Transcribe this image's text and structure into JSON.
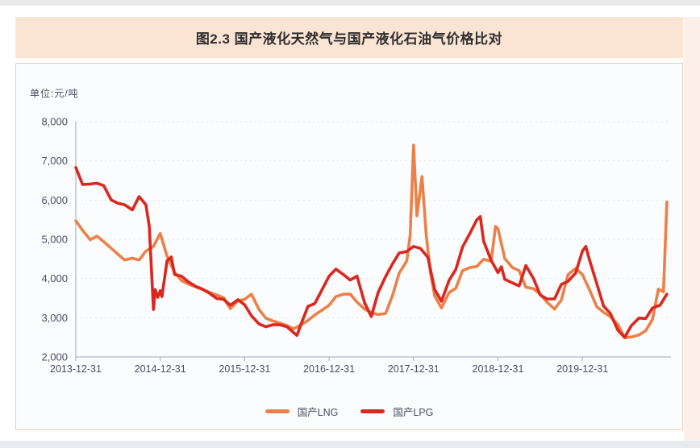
{
  "banner": {
    "title": "图2.3 国产液化天然气与国产液化石油气价格比对"
  },
  "chart": {
    "unit_label": "单位:元/吨",
    "y_tick_labels": [
      "8,000",
      "7,000",
      "6,000",
      "5,000",
      "4,000",
      "3,000",
      "2,000"
    ],
    "x_tick_labels": [
      "2013-12-31",
      "2014-12-31",
      "2015-12-31",
      "2016-12-31",
      "2017-12-31",
      "2018-12-31",
      "2019-12-31"
    ],
    "colors": {
      "lng": "#EC8148",
      "lpg": "#DB271E",
      "axis": "#9FA6B4",
      "grid": "#E2E6EC",
      "text": "#4A4E60"
    },
    "legend": [
      {
        "label": "国产LNG",
        "color": "#EC8148"
      },
      {
        "label": "国产LPG",
        "color": "#DB271E"
      }
    ]
  },
  "chart_data": {
    "type": "line",
    "title": "图2.3 国产液化天然气与国产液化石油气价格比对",
    "ylabel": "单位:元/吨",
    "ylim": [
      2000,
      8000
    ],
    "y_ticks": [
      2000,
      3000,
      4000,
      5000,
      6000,
      7000,
      8000
    ],
    "x_range_years": [
      2014.0,
      2021.05
    ],
    "x_ticks_years": [
      2014,
      2015,
      2016,
      2017,
      2018,
      2019,
      2020
    ],
    "x_tick_labels": [
      "2013-12-31",
      "2014-12-31",
      "2015-12-31",
      "2016-12-31",
      "2017-12-31",
      "2018-12-31",
      "2019-12-31"
    ],
    "grid": "horizontal-dotted",
    "legend_position": "bottom-center",
    "series": [
      {
        "name": "国产LNG",
        "color": "#EC8148",
        "points": [
          [
            2014.0,
            5470
          ],
          [
            2014.08,
            5230
          ],
          [
            2014.17,
            4990
          ],
          [
            2014.25,
            5080
          ],
          [
            2014.33,
            4940
          ],
          [
            2014.42,
            4770
          ],
          [
            2014.5,
            4620
          ],
          [
            2014.58,
            4470
          ],
          [
            2014.67,
            4520
          ],
          [
            2014.75,
            4470
          ],
          [
            2014.83,
            4700
          ],
          [
            2014.92,
            4820
          ],
          [
            2015.0,
            5150
          ],
          [
            2015.08,
            4570
          ],
          [
            2015.17,
            4160
          ],
          [
            2015.25,
            3950
          ],
          [
            2015.33,
            3860
          ],
          [
            2015.42,
            3790
          ],
          [
            2015.5,
            3720
          ],
          [
            2015.58,
            3650
          ],
          [
            2015.67,
            3580
          ],
          [
            2015.75,
            3510
          ],
          [
            2015.83,
            3230
          ],
          [
            2015.92,
            3430
          ],
          [
            2016.0,
            3470
          ],
          [
            2016.08,
            3600
          ],
          [
            2016.17,
            3210
          ],
          [
            2016.25,
            2990
          ],
          [
            2016.33,
            2920
          ],
          [
            2016.42,
            2860
          ],
          [
            2016.5,
            2800
          ],
          [
            2016.58,
            2720
          ],
          [
            2016.67,
            2820
          ],
          [
            2016.75,
            2930
          ],
          [
            2016.83,
            3070
          ],
          [
            2016.92,
            3200
          ],
          [
            2017.0,
            3320
          ],
          [
            2017.08,
            3540
          ],
          [
            2017.17,
            3600
          ],
          [
            2017.25,
            3600
          ],
          [
            2017.33,
            3400
          ],
          [
            2017.42,
            3220
          ],
          [
            2017.5,
            3130
          ],
          [
            2017.58,
            3080
          ],
          [
            2017.67,
            3110
          ],
          [
            2017.75,
            3560
          ],
          [
            2017.83,
            4140
          ],
          [
            2017.92,
            4450
          ],
          [
            2017.96,
            5100
          ],
          [
            2018.0,
            7400
          ],
          [
            2018.04,
            5600
          ],
          [
            2018.1,
            6600
          ],
          [
            2018.15,
            5120
          ],
          [
            2018.2,
            4160
          ],
          [
            2018.25,
            3560
          ],
          [
            2018.33,
            3250
          ],
          [
            2018.42,
            3640
          ],
          [
            2018.5,
            3750
          ],
          [
            2018.58,
            4200
          ],
          [
            2018.67,
            4280
          ],
          [
            2018.75,
            4310
          ],
          [
            2018.83,
            4490
          ],
          [
            2018.92,
            4440
          ],
          [
            2018.97,
            5330
          ],
          [
            2019.0,
            5270
          ],
          [
            2019.08,
            4510
          ],
          [
            2019.17,
            4280
          ],
          [
            2019.25,
            4200
          ],
          [
            2019.33,
            3780
          ],
          [
            2019.42,
            3740
          ],
          [
            2019.5,
            3600
          ],
          [
            2019.58,
            3400
          ],
          [
            2019.67,
            3220
          ],
          [
            2019.75,
            3450
          ],
          [
            2019.83,
            4100
          ],
          [
            2019.92,
            4260
          ],
          [
            2020.0,
            4100
          ],
          [
            2020.08,
            3730
          ],
          [
            2020.17,
            3280
          ],
          [
            2020.25,
            3140
          ],
          [
            2020.33,
            3030
          ],
          [
            2020.42,
            2830
          ],
          [
            2020.5,
            2490
          ],
          [
            2020.58,
            2510
          ],
          [
            2020.67,
            2560
          ],
          [
            2020.75,
            2670
          ],
          [
            2020.83,
            2960
          ],
          [
            2020.9,
            3730
          ],
          [
            2020.96,
            3660
          ],
          [
            2021.0,
            5950
          ]
        ]
      },
      {
        "name": "国产LPG",
        "color": "#DB271E",
        "points": [
          [
            2014.0,
            6830
          ],
          [
            2014.08,
            6400
          ],
          [
            2014.17,
            6410
          ],
          [
            2014.25,
            6430
          ],
          [
            2014.33,
            6370
          ],
          [
            2014.42,
            6000
          ],
          [
            2014.5,
            5920
          ],
          [
            2014.58,
            5880
          ],
          [
            2014.67,
            5750
          ],
          [
            2014.75,
            6090
          ],
          [
            2014.83,
            5880
          ],
          [
            2014.87,
            5330
          ],
          [
            2014.92,
            3210
          ],
          [
            2014.94,
            3720
          ],
          [
            2014.97,
            3520
          ],
          [
            2015.0,
            3690
          ],
          [
            2015.02,
            3540
          ],
          [
            2015.08,
            4450
          ],
          [
            2015.13,
            4550
          ],
          [
            2015.17,
            4100
          ],
          [
            2015.25,
            4060
          ],
          [
            2015.33,
            3920
          ],
          [
            2015.42,
            3800
          ],
          [
            2015.5,
            3730
          ],
          [
            2015.58,
            3630
          ],
          [
            2015.67,
            3490
          ],
          [
            2015.75,
            3470
          ],
          [
            2015.83,
            3320
          ],
          [
            2015.92,
            3460
          ],
          [
            2016.0,
            3330
          ],
          [
            2016.08,
            3050
          ],
          [
            2016.17,
            2840
          ],
          [
            2016.25,
            2770
          ],
          [
            2016.33,
            2820
          ],
          [
            2016.42,
            2820
          ],
          [
            2016.5,
            2770
          ],
          [
            2016.58,
            2620
          ],
          [
            2016.62,
            2550
          ],
          [
            2016.67,
            2850
          ],
          [
            2016.75,
            3290
          ],
          [
            2016.83,
            3360
          ],
          [
            2016.92,
            3730
          ],
          [
            2017.0,
            4060
          ],
          [
            2017.08,
            4240
          ],
          [
            2017.17,
            4100
          ],
          [
            2017.25,
            3960
          ],
          [
            2017.33,
            4060
          ],
          [
            2017.42,
            3380
          ],
          [
            2017.5,
            3030
          ],
          [
            2017.58,
            3640
          ],
          [
            2017.67,
            4050
          ],
          [
            2017.75,
            4370
          ],
          [
            2017.83,
            4650
          ],
          [
            2017.92,
            4690
          ],
          [
            2018.0,
            4820
          ],
          [
            2018.08,
            4770
          ],
          [
            2018.17,
            4540
          ],
          [
            2018.25,
            3720
          ],
          [
            2018.33,
            3420
          ],
          [
            2018.42,
            3950
          ],
          [
            2018.5,
            4230
          ],
          [
            2018.58,
            4800
          ],
          [
            2018.67,
            5160
          ],
          [
            2018.75,
            5500
          ],
          [
            2018.79,
            5580
          ],
          [
            2018.83,
            4950
          ],
          [
            2018.92,
            4460
          ],
          [
            2019.0,
            4150
          ],
          [
            2019.04,
            4300
          ],
          [
            2019.08,
            3980
          ],
          [
            2019.17,
            3890
          ],
          [
            2019.25,
            3810
          ],
          [
            2019.33,
            4330
          ],
          [
            2019.42,
            4000
          ],
          [
            2019.5,
            3580
          ],
          [
            2019.58,
            3480
          ],
          [
            2019.67,
            3480
          ],
          [
            2019.75,
            3850
          ],
          [
            2019.83,
            3930
          ],
          [
            2019.92,
            4140
          ],
          [
            2020.0,
            4700
          ],
          [
            2020.04,
            4820
          ],
          [
            2020.08,
            4500
          ],
          [
            2020.17,
            3870
          ],
          [
            2020.25,
            3300
          ],
          [
            2020.33,
            3110
          ],
          [
            2020.42,
            2680
          ],
          [
            2020.5,
            2500
          ],
          [
            2020.58,
            2800
          ],
          [
            2020.67,
            2990
          ],
          [
            2020.75,
            2980
          ],
          [
            2020.83,
            3250
          ],
          [
            2020.92,
            3320
          ],
          [
            2021.0,
            3600
          ]
        ]
      }
    ]
  }
}
